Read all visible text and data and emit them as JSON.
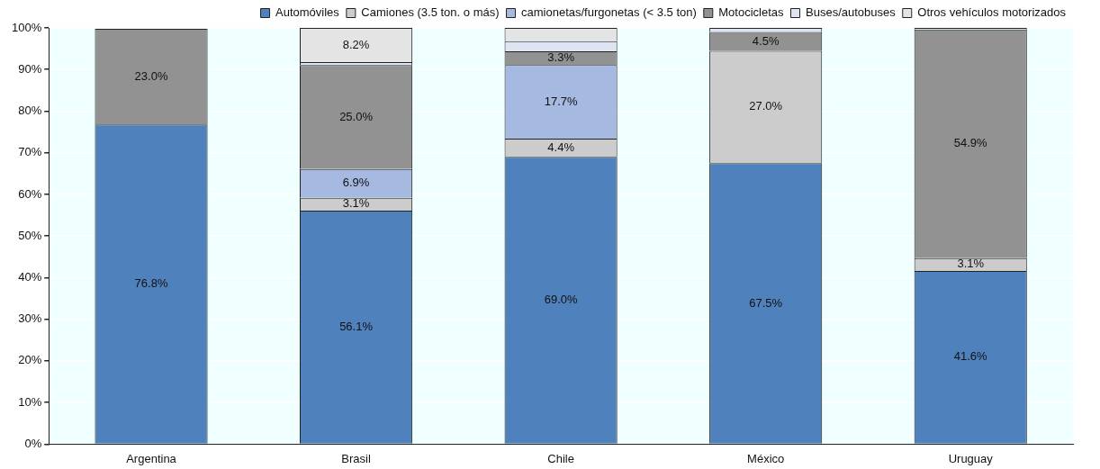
{
  "chart_data": {
    "type": "bar",
    "stacked": true,
    "categories": [
      "Argentina",
      "Brasil",
      "Chile",
      "México",
      "Uruguay"
    ],
    "series": [
      {
        "name": "Automóviles",
        "color": "#4f81bd",
        "values": [
          76.8,
          56.1,
          69.0,
          67.5,
          41.6
        ],
        "value_labels": [
          "76.8%",
          "56.1%",
          "69.0%",
          "67.5%",
          "41.6%"
        ]
      },
      {
        "name": "Camiones (3.5 ton. o más)",
        "color": "#cccccc",
        "values": [
          0,
          3.1,
          4.4,
          27.0,
          3.1
        ],
        "value_labels": [
          null,
          "3.1%",
          "4.4%",
          "27.0%",
          "3.1%"
        ]
      },
      {
        "name": "camionetas/furgonetas (< 3.5 ton)",
        "color": "#a6b9e0",
        "values": [
          0,
          6.9,
          17.7,
          0,
          0
        ],
        "value_labels": [
          null,
          "6.9%",
          "17.7%",
          null,
          null
        ]
      },
      {
        "name": "Motocicletas",
        "color": "#929292",
        "values": [
          23.0,
          25.0,
          3.3,
          4.5,
          54.9
        ],
        "value_labels": [
          "23.0%",
          "25.0%",
          "3.3%",
          "4.5%",
          "54.9%"
        ]
      },
      {
        "name": "Buses/autobuses",
        "color": "#dfe4f3",
        "values": [
          0,
          0.7,
          2.4,
          1.0,
          0.4
        ],
        "value_labels": [
          null,
          null,
          null,
          null,
          null
        ]
      },
      {
        "name": "Otros vehículos motorizados",
        "color": "#e4e4e4",
        "values": [
          0,
          8.2,
          3.2,
          0,
          0
        ],
        "value_labels": [
          null,
          "8.2%",
          null,
          null,
          null
        ]
      }
    ],
    "ylim": [
      0,
      100
    ],
    "yticks": [
      {
        "value": 0,
        "label": "0%"
      },
      {
        "value": 10,
        "label": "10%"
      },
      {
        "value": 20,
        "label": "20%"
      },
      {
        "value": 30,
        "label": "30%"
      },
      {
        "value": 40,
        "label": "40%"
      },
      {
        "value": 50,
        "label": "50%"
      },
      {
        "value": 60,
        "label": "60%"
      },
      {
        "value": 70,
        "label": "70%"
      },
      {
        "value": 80,
        "label": "80%"
      },
      {
        "value": 90,
        "label": "90%"
      },
      {
        "value": 100,
        "label": "100%"
      }
    ],
    "grid": "y",
    "legend": "top"
  }
}
